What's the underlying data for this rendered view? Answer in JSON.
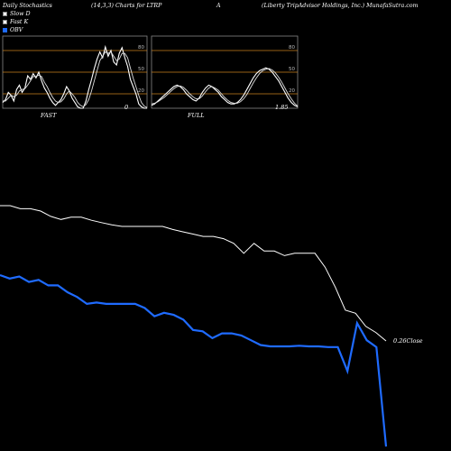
{
  "header": {
    "title": "Daily Stochastics",
    "params": "(14,3,3) Charts for LTRP",
    "code": "A",
    "company": "(Liberty TripAdvisor Holdings, Inc.) MunafaSutra.com"
  },
  "legend": [
    {
      "label": "Slow D",
      "color": "#ffffff"
    },
    {
      "label": "Fast K",
      "color": "#ffffff"
    },
    {
      "label": "OBV",
      "color": "#1f6bff"
    }
  ],
  "colors": {
    "background": "#000000",
    "price": "#ffffff",
    "obv": "#1f6bff",
    "level": "#c8821e",
    "panel_border": "#888888"
  },
  "chart_data": [
    {
      "type": "line",
      "name": "FAST",
      "bottom_label": "FAST",
      "value_label": "0",
      "ylim": [
        0,
        100
      ],
      "levels": [
        20,
        50,
        80
      ],
      "series": [
        {
          "name": "",
          "values": [
            8,
            12,
            22,
            18,
            10,
            26,
            32,
            22,
            28,
            45,
            40,
            48,
            42,
            50,
            38,
            28,
            22,
            14,
            8,
            4,
            8,
            12,
            20,
            30,
            24,
            14,
            8,
            2,
            0,
            0,
            10,
            26,
            40,
            55,
            68,
            78,
            70,
            85,
            72,
            80,
            64,
            60,
            76,
            84,
            70,
            58,
            40,
            30,
            20,
            6,
            2,
            0,
            0
          ]
        },
        {
          "name": "",
          "values": [
            10,
            10,
            14,
            18,
            16,
            18,
            24,
            26,
            27,
            32,
            38,
            44,
            44,
            46,
            44,
            36,
            30,
            22,
            15,
            10,
            8,
            9,
            13,
            20,
            24,
            20,
            15,
            8,
            4,
            2,
            5,
            12,
            24,
            38,
            52,
            66,
            72,
            78,
            76,
            78,
            72,
            66,
            68,
            76,
            76,
            70,
            56,
            42,
            30,
            18,
            8,
            3,
            1
          ]
        }
      ]
    },
    {
      "type": "line",
      "name": "FULL",
      "bottom_label": "FULL",
      "value_label": "1.85",
      "ylim": [
        0,
        100
      ],
      "levels": [
        20,
        50,
        80
      ],
      "series": [
        {
          "name": "",
          "values": [
            4,
            6,
            10,
            14,
            18,
            22,
            26,
            30,
            32,
            30,
            26,
            20,
            16,
            12,
            10,
            14,
            22,
            28,
            32,
            30,
            26,
            22,
            16,
            12,
            8,
            6,
            6,
            8,
            12,
            18,
            26,
            34,
            42,
            48,
            52,
            54,
            56,
            54,
            50,
            44,
            38,
            30,
            22,
            14,
            8,
            4,
            2
          ]
        },
        {
          "name": "",
          "values": [
            6,
            7,
            9,
            12,
            15,
            19,
            23,
            27,
            30,
            31,
            29,
            25,
            20,
            16,
            13,
            13,
            17,
            23,
            28,
            30,
            28,
            25,
            20,
            15,
            11,
            8,
            7,
            7,
            9,
            13,
            19,
            27,
            35,
            42,
            48,
            52,
            54,
            55,
            53,
            49,
            43,
            36,
            28,
            20,
            13,
            7,
            3
          ]
        }
      ]
    },
    {
      "type": "line",
      "name": "Price",
      "end_label": "0.26Close",
      "series": [
        {
          "name": "",
          "values": [
            27.6,
            27.6,
            27.2,
            27.2,
            26.9,
            26.2,
            25.8,
            26.1,
            26.1,
            25.7,
            25.4,
            25.1,
            24.9,
            24.9,
            24.9,
            24.9,
            24.9,
            24.5,
            24.2,
            23.9,
            23.6,
            23.6,
            23.3,
            22.7,
            21.4,
            22.7,
            21.7,
            21.7,
            21.1,
            21.4,
            21.4,
            21.4,
            19.6,
            17.0,
            14.0,
            13.6,
            11.9,
            11.1,
            10.0
          ]
        }
      ]
    },
    {
      "type": "line",
      "name": "OBV",
      "series": [
        {
          "name": "",
          "values": [
            1000,
            995,
            998,
            990,
            993,
            985,
            985,
            975,
            968,
            958,
            960,
            958,
            958,
            958,
            958,
            952,
            940,
            945,
            942,
            935,
            920,
            918,
            908,
            915,
            915,
            912,
            905,
            898,
            896,
            896,
            896,
            897,
            896,
            896,
            895,
            895,
            860,
            930,
            905,
            895,
            750
          ]
        }
      ]
    }
  ]
}
